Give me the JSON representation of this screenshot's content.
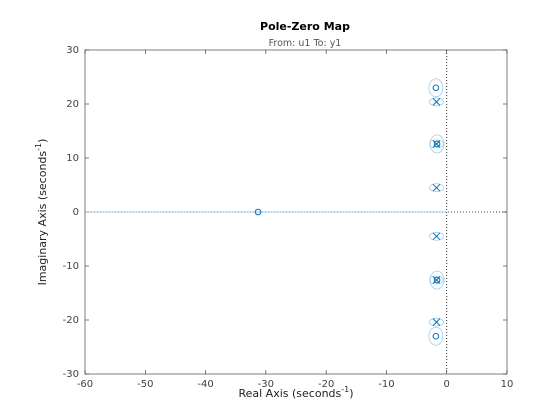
{
  "chart_data": {
    "type": "pzmap",
    "title": "Pole-Zero Map",
    "subtitle": "From: u1  To: y1",
    "xlabel": {
      "text": "Real Axis (seconds",
      "sup": "-1",
      "tail": ")"
    },
    "ylabel": {
      "text": "Imaginary Axis (seconds",
      "sup": "-1",
      "tail": ")"
    },
    "xlim": [
      -60,
      10
    ],
    "ylim": [
      -30,
      30
    ],
    "xticks": [
      -60,
      -50,
      -40,
      -30,
      -20,
      -10,
      0,
      10
    ],
    "yticks": [
      -30,
      -20,
      -10,
      0,
      10,
      20,
      30
    ],
    "series": [
      {
        "marker": "x",
        "color": "#0072bd",
        "x": [
          -1.7,
          -1.7,
          -1.7,
          -1.7,
          -1.7,
          -1.7
        ],
        "values": [
          20.4,
          12.6,
          4.5,
          -4.5,
          -12.6,
          -20.4
        ]
      },
      {
        "marker": "o",
        "color": "#0072bd",
        "x": [
          -1.8,
          -1.6,
          -31.3,
          -1.6,
          -1.8
        ],
        "values": [
          23,
          12.6,
          0,
          -12.6,
          -23
        ]
      }
    ]
  }
}
